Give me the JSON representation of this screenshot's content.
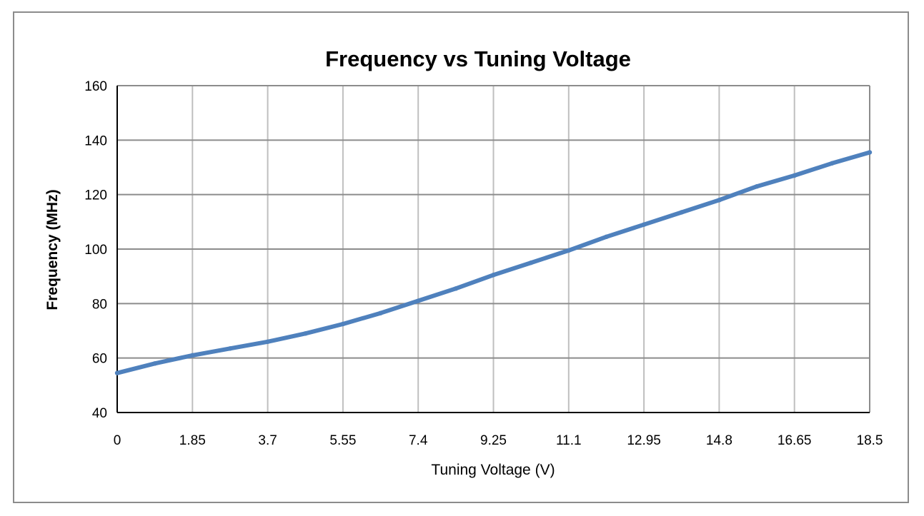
{
  "chart_data": {
    "type": "line",
    "title": "Frequency vs Tuning Voltage",
    "xlabel": "Tuning Voltage (V)",
    "ylabel": "Frequency (MHz)",
    "xlim": [
      0,
      18.5
    ],
    "ylim": [
      40,
      160
    ],
    "x_ticks": [
      "0",
      "1.85",
      "3.7",
      "5.55",
      "7.4",
      "9.25",
      "11.1",
      "12.95",
      "14.8",
      "16.65",
      "18.5"
    ],
    "y_ticks": [
      "40",
      "60",
      "80",
      "100",
      "120",
      "140",
      "160"
    ],
    "grid": {
      "vertical": true,
      "horizontal": true
    },
    "legend": "none",
    "series": [
      {
        "color": "#4f81bd",
        "x": [
          0,
          0.925,
          1.85,
          2.775,
          3.7,
          4.625,
          5.55,
          6.475,
          7.4,
          8.325,
          9.25,
          10.175,
          11.1,
          12.025,
          12.95,
          13.875,
          14.8,
          15.725,
          16.65,
          17.575,
          18.5
        ],
        "y": [
          54.5,
          58.0,
          61.0,
          63.5,
          66.0,
          69.0,
          72.5,
          76.5,
          81.0,
          85.5,
          90.5,
          95.0,
          99.5,
          104.5,
          109.0,
          113.5,
          118.0,
          123.0,
          127.0,
          131.5,
          135.5
        ]
      }
    ]
  }
}
